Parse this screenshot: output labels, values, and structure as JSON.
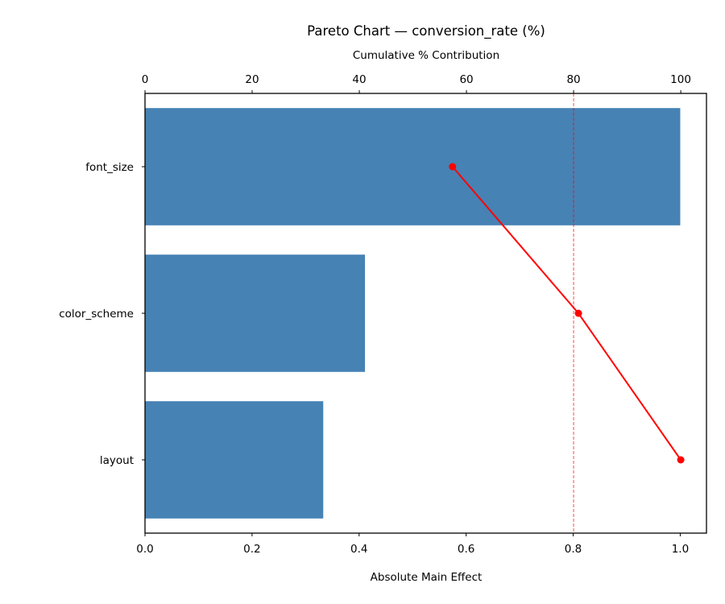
{
  "chart_data": {
    "type": "bar",
    "orientation": "horizontal",
    "title": "Pareto Chart — conversion_rate (%)",
    "xlabel": "Absolute Main Effect",
    "x2label": "Cumulative % Contribution",
    "ylabel": "",
    "categories": [
      "font_size",
      "color_scheme",
      "layout"
    ],
    "series": [
      {
        "name": "Absolute Main Effect",
        "type": "bar",
        "axis": "bottom",
        "color": "#4682b4",
        "values": [
          1.0,
          0.411,
          0.333
        ]
      },
      {
        "name": "Cumulative % Contribution",
        "type": "line",
        "axis": "top",
        "color": "#ff0000",
        "marker": "circle",
        "values": [
          57.4,
          80.9,
          100.0
        ]
      }
    ],
    "reference_lines": [
      {
        "axis": "top",
        "value": 80,
        "style": "dashed",
        "color": "#ff0000",
        "alpha": 0.7
      }
    ],
    "xlim": [
      0,
      1.049
    ],
    "x2lim": [
      0,
      104.8
    ],
    "xticks": [
      "0.0",
      "0.2",
      "0.4",
      "0.6",
      "0.8",
      "1.0"
    ],
    "x2ticks": [
      "0",
      "20",
      "40",
      "60",
      "80",
      "100"
    ],
    "grid": false,
    "legend": null
  }
}
